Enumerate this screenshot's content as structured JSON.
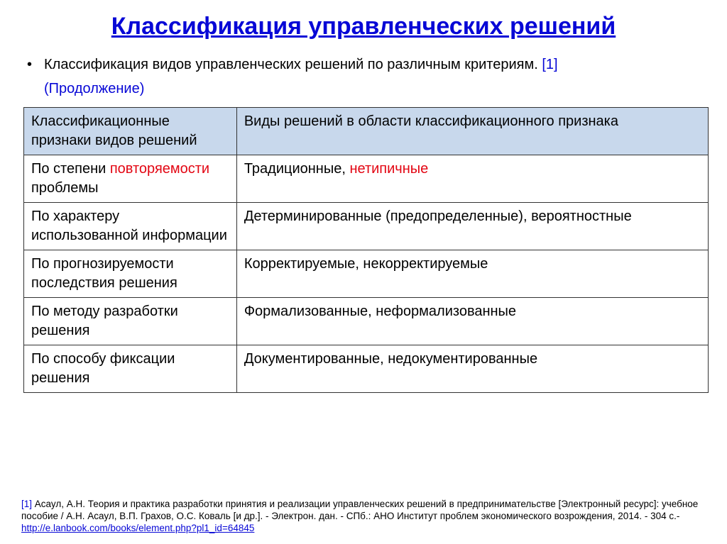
{
  "colors": {
    "title": "#0707d6",
    "ref": "#0707d6",
    "continuation": "#0707d6",
    "highlight": "#e30613",
    "header_bg": "#c8d8ec",
    "text": "#000000",
    "link": "#0707d6"
  },
  "title": "Классификация управленческих решений",
  "intro": {
    "text_main": "Классификация видов управленческих решений по различным критериям. ",
    "ref": "[1]",
    "continuation": "(Продолжение)"
  },
  "table": {
    "headers": {
      "col1": "Классификационные признаки видов решений",
      "col2": "Виды решений в области  классификационного признака"
    },
    "rows": [
      {
        "c1_a": "По степени ",
        "c1_hl": "повторяемости",
        "c1_b": " проблемы",
        "c2_a": "Традиционные, ",
        "c2_hl": "нетипичные",
        "c2_b": ""
      },
      {
        "c1_a": "По характеру использованной информации",
        "c1_hl": "",
        "c1_b": "",
        "c2_a": "Детерминированные (предопределенные), вероятностные",
        "c2_hl": "",
        "c2_b": ""
      },
      {
        "c1_a": "По прогнозируемости последствия решения",
        "c1_hl": "",
        "c1_b": "",
        "c2_a": "Корректируемые, некорректируемые",
        "c2_hl": "",
        "c2_b": ""
      },
      {
        "c1_a": "По методу разработки решения",
        "c1_hl": "",
        "c1_b": "",
        "c2_a": "Формализованные, неформализованные",
        "c2_hl": "",
        "c2_b": ""
      },
      {
        "c1_a": "По способу фиксации решения",
        "c1_hl": "",
        "c1_b": "",
        "c2_a": "Документированные, недокументированные",
        "c2_hl": "",
        "c2_b": ""
      }
    ]
  },
  "footnote": {
    "ref": "[1]",
    "body": " Асаул, А.Н. Теория и практика разработки принятия и реализации управленческих решений в предпринимательстве [Электронный ресурс]: учебное пособие / А.Н. Асаул, В.П. Грахов, О.С. Коваль [и др.]. - Электрон. дан. - СПб.: АНО Институт проблем экономического возрождения, 2014. - 304 с.- ",
    "link": "http://e.lanbook.com/books/element.php?pl1_id=64845"
  }
}
